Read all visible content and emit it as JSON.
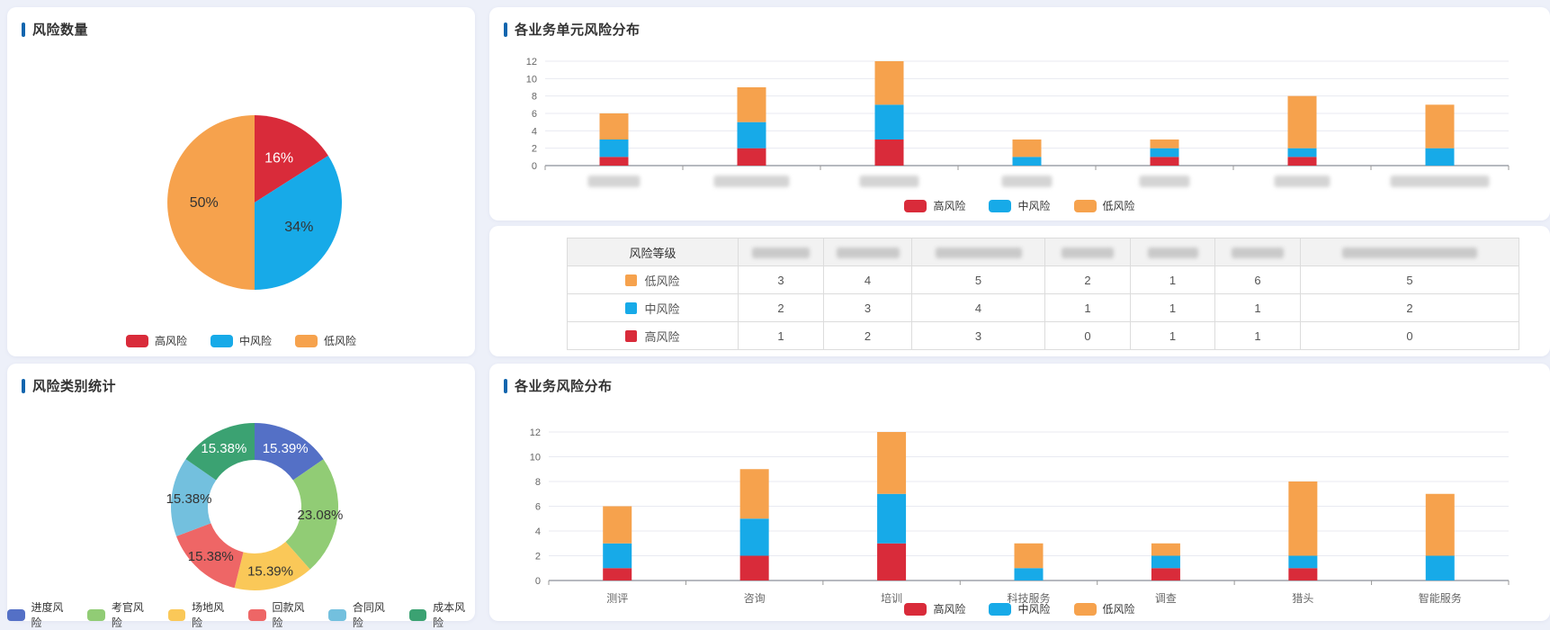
{
  "palette": {
    "accent": "#1065AE",
    "high_risk": "#D92B3A",
    "mid_risk": "#17AAE8",
    "low_risk": "#F6A24D",
    "grid_line": "#E8EAF1",
    "axis_line": "#8A8F99",
    "page_bg": "#EDF0F9"
  },
  "panels": {
    "risk_count": {
      "title": "风险数量"
    },
    "unit_dist": {
      "title": "各业务单元风险分布"
    },
    "category_stats": {
      "title": "风险类别统计"
    },
    "business_dist": {
      "title": "各业务风险分布"
    }
  },
  "chart_data": [
    {
      "id": "risk-count-pie",
      "type": "pie",
      "title": "风险数量",
      "legend_position": "bottom",
      "slices": [
        {
          "label": "高风险",
          "value": 16,
          "display": "16%",
          "color": "#D92B3A",
          "label_color": "#FFFFFF"
        },
        {
          "label": "中风险",
          "value": 34,
          "display": "34%",
          "color": "#17AAE8",
          "label_color": "#333333"
        },
        {
          "label": "低风险",
          "value": 50,
          "display": "50%",
          "color": "#F6A24D",
          "label_color": "#333333"
        }
      ]
    },
    {
      "id": "unit-risk-stacked-bar",
      "type": "bar",
      "stacked": true,
      "title": "各业务单元风险分布",
      "categories_redacted": true,
      "categories": [
        "",
        "",
        "",
        "",
        "",
        "",
        ""
      ],
      "series": [
        {
          "name": "高风险",
          "color": "#D92B3A",
          "values": [
            1,
            2,
            3,
            0,
            1,
            1,
            0
          ]
        },
        {
          "name": "中风险",
          "color": "#17AAE8",
          "values": [
            2,
            3,
            4,
            1,
            1,
            1,
            2
          ]
        },
        {
          "name": "低风险",
          "color": "#F6A24D",
          "values": [
            3,
            4,
            5,
            2,
            1,
            6,
            5
          ]
        }
      ],
      "ylim": [
        0,
        12
      ],
      "yticks": [
        0,
        2,
        4,
        6,
        8,
        10,
        12
      ],
      "grid": true,
      "legend_position": "bottom"
    },
    {
      "id": "risk-table",
      "type": "table",
      "first_header": "风险等级",
      "headers_redacted": true,
      "rows": [
        {
          "label": "低风险",
          "color": "#F6A24D",
          "values": [
            3,
            4,
            5,
            2,
            1,
            6,
            5
          ]
        },
        {
          "label": "中风险",
          "color": "#17AAE8",
          "values": [
            2,
            3,
            4,
            1,
            1,
            1,
            2
          ]
        },
        {
          "label": "高风险",
          "color": "#D92B3A",
          "values": [
            1,
            2,
            3,
            0,
            1,
            1,
            0
          ]
        }
      ]
    },
    {
      "id": "risk-category-donut",
      "type": "donut",
      "title": "风险类别统计",
      "legend_position": "bottom",
      "slices": [
        {
          "label": "进度风险",
          "value": 15.39,
          "display": "15.39%",
          "color": "#5470C6",
          "label_color": "#FFFFFF"
        },
        {
          "label": "考官风险",
          "value": 23.08,
          "display": "23.08%",
          "color": "#91CC75",
          "label_color": "#333333"
        },
        {
          "label": "场地风险",
          "value": 15.39,
          "display": "15.39%",
          "color": "#FAC858",
          "label_color": "#333333"
        },
        {
          "label": "回款风险",
          "value": 15.38,
          "display": "15.38%",
          "color": "#EE6666",
          "label_color": "#333333"
        },
        {
          "label": "合同风险",
          "value": 15.38,
          "display": "15.38%",
          "color": "#73C0DE",
          "label_color": "#333333"
        },
        {
          "label": "成本风险",
          "value": 15.38,
          "display": "15.38%",
          "color": "#3BA272",
          "label_color": "#FFFFFF"
        }
      ]
    },
    {
      "id": "business-risk-stacked-bar",
      "type": "bar",
      "stacked": true,
      "title": "各业务风险分布",
      "categories_redacted": false,
      "categories": [
        "测评",
        "咨询",
        "培训",
        "科技服务",
        "调查",
        "猎头",
        "智能服务"
      ],
      "series": [
        {
          "name": "高风险",
          "color": "#D92B3A",
          "values": [
            1,
            2,
            3,
            0,
            1,
            1,
            0
          ]
        },
        {
          "name": "中风险",
          "color": "#17AAE8",
          "values": [
            2,
            3,
            4,
            1,
            1,
            1,
            2
          ]
        },
        {
          "name": "低风险",
          "color": "#F6A24D",
          "values": [
            3,
            4,
            5,
            2,
            1,
            6,
            5
          ]
        }
      ],
      "ylim": [
        0,
        12
      ],
      "yticks": [
        0,
        2,
        4,
        6,
        8,
        10,
        12
      ],
      "grid": true,
      "legend_position": "bottom"
    }
  ]
}
